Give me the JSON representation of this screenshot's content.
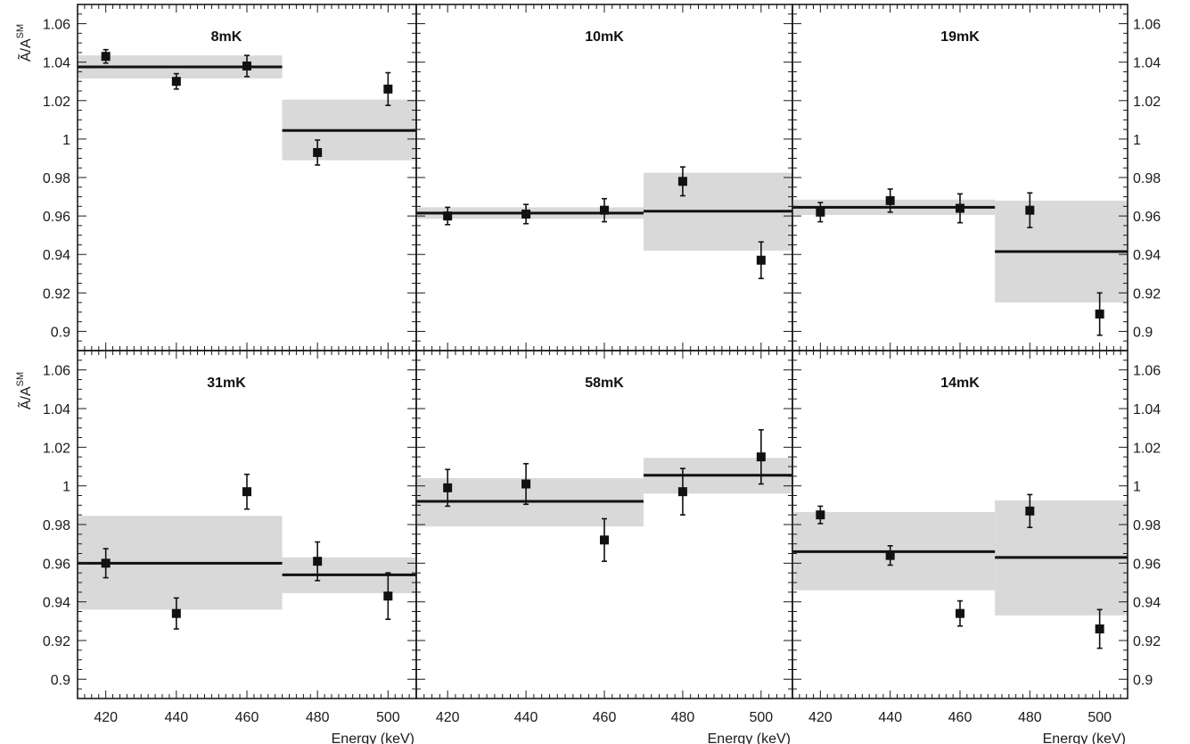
{
  "chart_data": {
    "type": "scatter",
    "ylabel": "Ã/A",
    "ylabel_superscript": "SM",
    "xlabel": "Energy (keV)",
    "xlim": [
      412,
      508
    ],
    "ylim": [
      0.89,
      1.07
    ],
    "x_ticks": [
      420,
      440,
      460,
      480,
      500
    ],
    "y_ticks": [
      "0.9",
      "0.92",
      "0.94",
      "0.96",
      "0.98",
      "1",
      "1.02",
      "1.04",
      "1.06"
    ],
    "y_tick_values": [
      0.9,
      0.92,
      0.94,
      0.96,
      0.98,
      1.0,
      1.02,
      1.04,
      1.06
    ],
    "panels": [
      {
        "title": "8mK",
        "points": [
          {
            "x": 420,
            "y": 1.043,
            "err": 0.0035
          },
          {
            "x": 440,
            "y": 1.03,
            "err": 0.004
          },
          {
            "x": 460,
            "y": 1.038,
            "err": 0.0055
          },
          {
            "x": 480,
            "y": 0.993,
            "err": 0.0065
          },
          {
            "x": 500,
            "y": 1.026,
            "err": 0.0085
          }
        ],
        "fits": [
          {
            "x_range": [
              412,
              470
            ],
            "value": 1.0375,
            "band": [
              1.0315,
              1.0435
            ]
          },
          {
            "x_range": [
              470,
              508
            ],
            "value": 1.0045,
            "band": [
              0.989,
              1.0205
            ]
          }
        ]
      },
      {
        "title": "10mK",
        "points": [
          {
            "x": 420,
            "y": 0.96,
            "err": 0.0045
          },
          {
            "x": 440,
            "y": 0.961,
            "err": 0.005
          },
          {
            "x": 460,
            "y": 0.963,
            "err": 0.006
          },
          {
            "x": 480,
            "y": 0.978,
            "err": 0.0075
          },
          {
            "x": 500,
            "y": 0.937,
            "err": 0.0095
          }
        ],
        "fits": [
          {
            "x_range": [
              412,
              470
            ],
            "value": 0.9615,
            "band": [
              0.9585,
              0.9645
            ]
          },
          {
            "x_range": [
              470,
              508
            ],
            "value": 0.9625,
            "band": [
              0.942,
              0.9825
            ]
          }
        ]
      },
      {
        "title": "19mK",
        "points": [
          {
            "x": 420,
            "y": 0.962,
            "err": 0.005
          },
          {
            "x": 440,
            "y": 0.968,
            "err": 0.006
          },
          {
            "x": 460,
            "y": 0.964,
            "err": 0.0075
          },
          {
            "x": 480,
            "y": 0.963,
            "err": 0.009
          },
          {
            "x": 500,
            "y": 0.909,
            "err": 0.011
          }
        ],
        "fits": [
          {
            "x_range": [
              412,
              470
            ],
            "value": 0.9645,
            "band": [
              0.9605,
              0.9685
            ]
          },
          {
            "x_range": [
              470,
              508
            ],
            "value": 0.9415,
            "band": [
              0.915,
              0.968
            ]
          }
        ]
      },
      {
        "title": "31mK",
        "points": [
          {
            "x": 420,
            "y": 0.96,
            "err": 0.0075
          },
          {
            "x": 440,
            "y": 0.934,
            "err": 0.008
          },
          {
            "x": 460,
            "y": 0.997,
            "err": 0.009
          },
          {
            "x": 480,
            "y": 0.961,
            "err": 0.01
          },
          {
            "x": 500,
            "y": 0.943,
            "err": 0.012
          }
        ],
        "fits": [
          {
            "x_range": [
              412,
              470
            ],
            "value": 0.96,
            "band": [
              0.936,
              0.9845
            ]
          },
          {
            "x_range": [
              470,
              508
            ],
            "value": 0.954,
            "band": [
              0.9445,
              0.963
            ]
          }
        ]
      },
      {
        "title": "58mK",
        "points": [
          {
            "x": 420,
            "y": 0.999,
            "err": 0.0095
          },
          {
            "x": 440,
            "y": 1.001,
            "err": 0.0105
          },
          {
            "x": 460,
            "y": 0.972,
            "err": 0.011
          },
          {
            "x": 480,
            "y": 0.997,
            "err": 0.012
          },
          {
            "x": 500,
            "y": 1.015,
            "err": 0.014
          }
        ],
        "fits": [
          {
            "x_range": [
              412,
              470
            ],
            "value": 0.992,
            "band": [
              0.979,
              1.004
            ]
          },
          {
            "x_range": [
              470,
              508
            ],
            "value": 1.0055,
            "band": [
              0.996,
              1.0145
            ]
          }
        ]
      },
      {
        "title": "14mK",
        "points": [
          {
            "x": 420,
            "y": 0.985,
            "err": 0.0045
          },
          {
            "x": 440,
            "y": 0.964,
            "err": 0.005
          },
          {
            "x": 460,
            "y": 0.934,
            "err": 0.0065
          },
          {
            "x": 480,
            "y": 0.987,
            "err": 0.0085
          },
          {
            "x": 500,
            "y": 0.926,
            "err": 0.01
          }
        ],
        "fits": [
          {
            "x_range": [
              412,
              470
            ],
            "value": 0.966,
            "band": [
              0.946,
              0.9865
            ]
          },
          {
            "x_range": [
              470,
              508
            ],
            "value": 0.963,
            "band": [
              0.933,
              0.9925
            ]
          }
        ]
      }
    ]
  },
  "colors": {
    "band": "#d9d9d9",
    "line": "#111111",
    "marker": "#111111",
    "axes": "#1a1a1a"
  }
}
